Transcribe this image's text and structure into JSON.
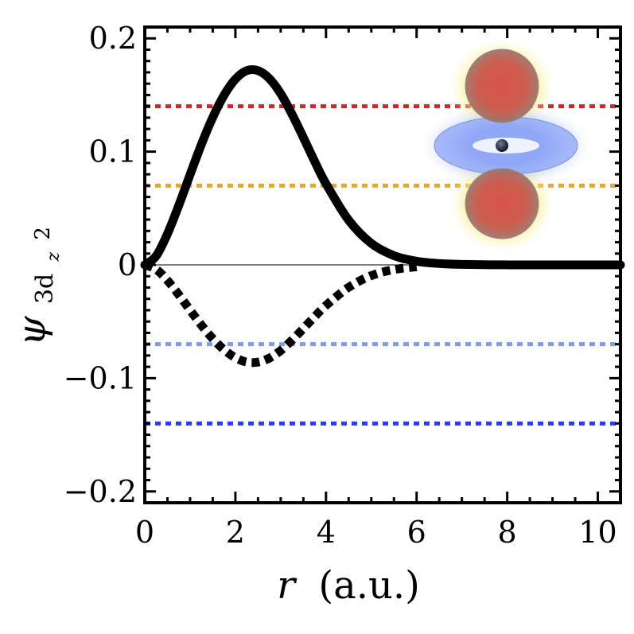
{
  "chart_data": {
    "type": "line",
    "xlabel": {
      "symbol": "r",
      "unit": "(a.u.)"
    },
    "ylabel": {
      "symbol": "ψ",
      "subscript": "3d",
      "sub_subscript": "z",
      "sup": "2"
    },
    "xlim": [
      0,
      10.5
    ],
    "ylim": [
      -0.21,
      0.21
    ],
    "x_ticks": [
      {
        "value": 0,
        "label": "0"
      },
      {
        "value": 2,
        "label": "2"
      },
      {
        "value": 4,
        "label": "4"
      },
      {
        "value": 6,
        "label": "6"
      },
      {
        "value": 8,
        "label": "8"
      },
      {
        "value": 10,
        "label": "10"
      }
    ],
    "y_ticks": [
      {
        "value": 0.2,
        "label": "0.2"
      },
      {
        "value": 0.1,
        "label": "0.1"
      },
      {
        "value": 0,
        "label": "0"
      },
      {
        "value": -0.1,
        "label": "−0.1"
      },
      {
        "value": -0.2,
        "label": "−0.2"
      }
    ],
    "grid": false,
    "zero_line": true,
    "series": [
      {
        "style": "solid",
        "color": "#000000",
        "x": [
          0,
          0.25,
          0.5,
          0.75,
          1.0,
          1.25,
          1.5,
          1.75,
          2.0,
          2.25,
          2.5,
          2.75,
          3.0,
          3.25,
          3.5,
          3.75,
          4.0,
          4.5,
          5.0,
          5.5,
          6.0,
          6.5,
          7.0,
          8.0,
          9.0,
          10.0,
          10.5
        ],
        "values": [
          0,
          0.0078,
          0.0274,
          0.0525,
          0.0797,
          0.1064,
          0.1302,
          0.1498,
          0.164,
          0.1715,
          0.1715,
          0.1645,
          0.1512,
          0.133,
          0.1125,
          0.0914,
          0.0716,
          0.0395,
          0.019,
          0.0082,
          0.0032,
          0.0012,
          0.0004,
          4e-05,
          0,
          0,
          0
        ]
      },
      {
        "style": "dotted",
        "color": "#000000",
        "x": [
          0,
          0.25,
          0.5,
          0.75,
          1.0,
          1.25,
          1.5,
          1.75,
          2.0,
          2.25,
          2.5,
          2.75,
          3.0,
          3.25,
          3.5,
          3.75,
          4.0,
          4.5,
          5.0,
          5.5,
          6.0
        ],
        "values": [
          0,
          -0.0039,
          -0.0137,
          -0.0263,
          -0.0399,
          -0.0532,
          -0.0651,
          -0.0749,
          -0.082,
          -0.0858,
          -0.0858,
          -0.0823,
          -0.0756,
          -0.0665,
          -0.0562,
          -0.0457,
          -0.0358,
          -0.0198,
          -0.0095,
          -0.0041,
          -0.0016
        ]
      }
    ],
    "reference_lines": [
      {
        "y": 0.14,
        "color": "#d6242a",
        "style": "dotted"
      },
      {
        "y": 0.07,
        "color": "#e7a82a",
        "style": "dotted"
      },
      {
        "y": -0.07,
        "color": "#7f9ce8",
        "style": "dotted"
      },
      {
        "y": -0.14,
        "color": "#2940e6",
        "style": "dotted"
      }
    ],
    "inset": {
      "description_icon": "dz2-orbital-icon",
      "position": "top-right"
    }
  }
}
